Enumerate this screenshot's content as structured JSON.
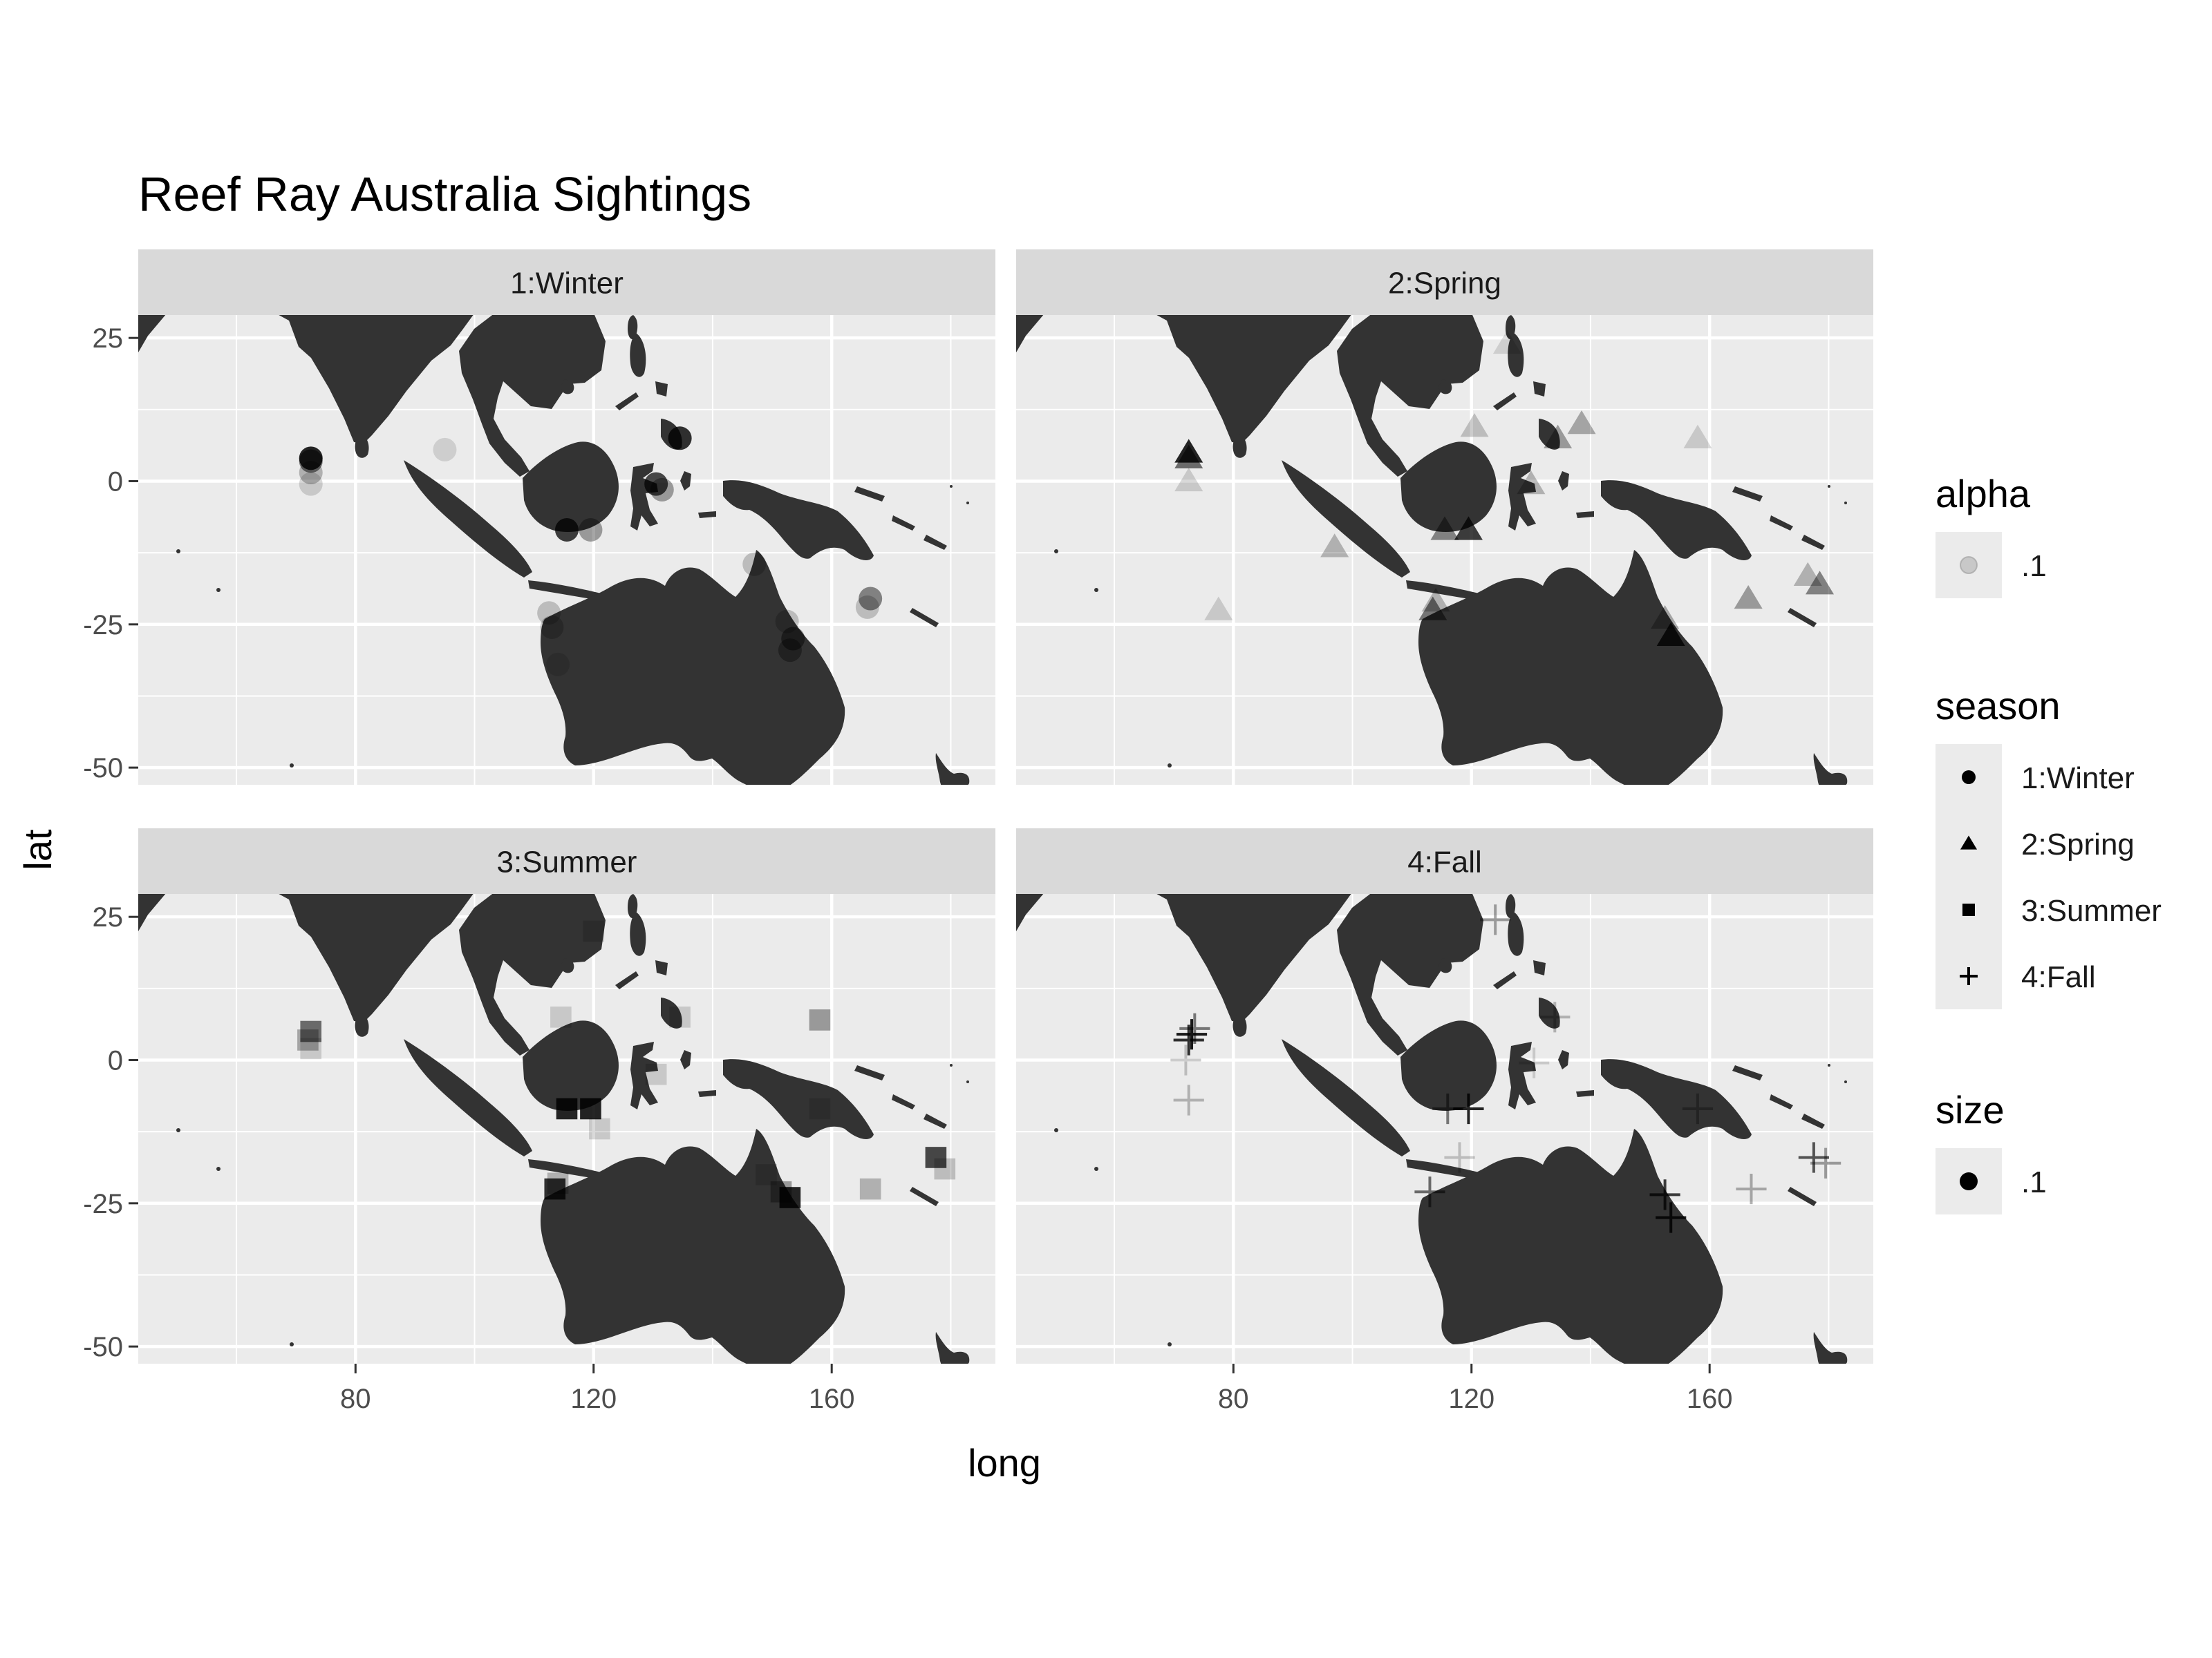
{
  "chart_data": {
    "type": "scatter",
    "title": "Reef Ray Australia Sightings",
    "xlabel": "long",
    "ylabel": "lat",
    "xlim": [
      43.5,
      187.5
    ],
    "ylim": [
      -53,
      29
    ],
    "x_ticks": [
      80,
      120,
      160
    ],
    "y_ticks": [
      25,
      0,
      -25,
      -50
    ],
    "grid": true,
    "panels": [
      {
        "label": "1:Winter",
        "shape": "circle",
        "points": [
          {
            "long": 72.5,
            "lat": 4,
            "opacity": 0.85
          },
          {
            "long": 72.5,
            "lat": 3.5,
            "opacity": 0.5
          },
          {
            "long": 72.5,
            "lat": 1.5,
            "opacity": 0.25
          },
          {
            "long": 72.5,
            "lat": -0.5,
            "opacity": 0.15
          },
          {
            "long": 134.5,
            "lat": 7.5,
            "opacity": 0.8
          },
          {
            "long": 130.5,
            "lat": -0.5,
            "opacity": 0.7
          },
          {
            "long": 131.5,
            "lat": -1.5,
            "opacity": 0.35
          },
          {
            "long": 115.5,
            "lat": -8.5,
            "opacity": 0.75
          },
          {
            "long": 119.5,
            "lat": -8.5,
            "opacity": 0.35
          },
          {
            "long": 147,
            "lat": -14.5,
            "opacity": 0.2
          },
          {
            "long": 112.5,
            "lat": -23,
            "opacity": 0.2
          },
          {
            "long": 113,
            "lat": -25.5,
            "opacity": 0.2
          },
          {
            "long": 153.5,
            "lat": -27.5,
            "opacity": 0.45
          },
          {
            "long": 153,
            "lat": -29.5,
            "opacity": 0.35
          },
          {
            "long": 152.5,
            "lat": -24.5,
            "opacity": 0.2
          },
          {
            "long": 166.5,
            "lat": -20.5,
            "opacity": 0.45
          },
          {
            "long": 166,
            "lat": -22,
            "opacity": 0.2
          },
          {
            "long": 95,
            "lat": 5.5,
            "opacity": 0.12
          },
          {
            "long": 114,
            "lat": -32,
            "opacity": 0.12
          }
        ]
      },
      {
        "label": "2:Spring",
        "shape": "triangle",
        "points": [
          {
            "long": 72.5,
            "lat": 5,
            "opacity": 0.85
          },
          {
            "long": 72.5,
            "lat": 4,
            "opacity": 0.55
          },
          {
            "long": 72.5,
            "lat": 0,
            "opacity": 0.15
          },
          {
            "long": 97,
            "lat": -11.5,
            "opacity": 0.25
          },
          {
            "long": 77.5,
            "lat": -22.5,
            "opacity": 0.15
          },
          {
            "long": 120.5,
            "lat": 9.5,
            "opacity": 0.2
          },
          {
            "long": 134.5,
            "lat": 7.5,
            "opacity": 0.35
          },
          {
            "long": 138.5,
            "lat": 10,
            "opacity": 0.3
          },
          {
            "long": 158,
            "lat": 7.5,
            "opacity": 0.15
          },
          {
            "long": 130,
            "lat": -0.5,
            "opacity": 0.25
          },
          {
            "long": 115.5,
            "lat": -8.5,
            "opacity": 0.45
          },
          {
            "long": 119.5,
            "lat": -8.5,
            "opacity": 0.75
          },
          {
            "long": 113.5,
            "lat": -22.5,
            "opacity": 0.5
          },
          {
            "long": 114,
            "lat": -21,
            "opacity": 0.25
          },
          {
            "long": 153.5,
            "lat": -27,
            "opacity": 0.8
          },
          {
            "long": 152.5,
            "lat": -24,
            "opacity": 0.3
          },
          {
            "long": 166.5,
            "lat": -20.5,
            "opacity": 0.35
          },
          {
            "long": 176.5,
            "lat": -16.5,
            "opacity": 0.25
          },
          {
            "long": 178.5,
            "lat": -18,
            "opacity": 0.45
          },
          {
            "long": 126,
            "lat": 24,
            "opacity": 0.12
          }
        ]
      },
      {
        "label": "3:Summer",
        "shape": "square",
        "points": [
          {
            "long": 72.5,
            "lat": 5,
            "opacity": 0.55
          },
          {
            "long": 72,
            "lat": 3.5,
            "opacity": 0.3
          },
          {
            "long": 72.5,
            "lat": 2,
            "opacity": 0.15
          },
          {
            "long": 114.5,
            "lat": 7.5,
            "opacity": 0.15
          },
          {
            "long": 120,
            "lat": 22.5,
            "opacity": 0.15
          },
          {
            "long": 134.5,
            "lat": 7.5,
            "opacity": 0.15
          },
          {
            "long": 158,
            "lat": 7,
            "opacity": 0.35
          },
          {
            "long": 115.5,
            "lat": -8.5,
            "opacity": 0.85
          },
          {
            "long": 119.5,
            "lat": -8.5,
            "opacity": 0.85
          },
          {
            "long": 121,
            "lat": -12,
            "opacity": 0.15
          },
          {
            "long": 130.5,
            "lat": -2.5,
            "opacity": 0.15
          },
          {
            "long": 113.5,
            "lat": -22.5,
            "opacity": 0.8
          },
          {
            "long": 114,
            "lat": -21.5,
            "opacity": 0.25
          },
          {
            "long": 153,
            "lat": -24,
            "opacity": 0.85
          },
          {
            "long": 151.5,
            "lat": -23,
            "opacity": 0.35
          },
          {
            "long": 149,
            "lat": -20,
            "opacity": 0.15
          },
          {
            "long": 166.5,
            "lat": -22.5,
            "opacity": 0.25
          },
          {
            "long": 177.5,
            "lat": -17,
            "opacity": 0.7
          },
          {
            "long": 179,
            "lat": -19,
            "opacity": 0.2
          },
          {
            "long": 158,
            "lat": -8.5,
            "opacity": 0.12
          }
        ]
      },
      {
        "label": "4:Fall",
        "shape": "cross",
        "points": [
          {
            "long": 73,
            "lat": 4.5,
            "opacity": 0.9
          },
          {
            "long": 72.5,
            "lat": 3.5,
            "opacity": 0.8
          },
          {
            "long": 73.5,
            "lat": 5.5,
            "opacity": 0.5
          },
          {
            "long": 72,
            "lat": 0,
            "opacity": 0.2
          },
          {
            "long": 72.5,
            "lat": -7,
            "opacity": 0.25
          },
          {
            "long": 124,
            "lat": 24.5,
            "opacity": 0.35
          },
          {
            "long": 134,
            "lat": 7.5,
            "opacity": 0.25
          },
          {
            "long": 116,
            "lat": -8.5,
            "opacity": 0.5
          },
          {
            "long": 119.5,
            "lat": -8.5,
            "opacity": 0.85
          },
          {
            "long": 118,
            "lat": -17,
            "opacity": 0.2
          },
          {
            "long": 113,
            "lat": -23,
            "opacity": 0.55
          },
          {
            "long": 152.5,
            "lat": -23.5,
            "opacity": 0.75
          },
          {
            "long": 153.5,
            "lat": -27.5,
            "opacity": 0.85
          },
          {
            "long": 158,
            "lat": -8.5,
            "opacity": 0.3
          },
          {
            "long": 167,
            "lat": -22.5,
            "opacity": 0.3
          },
          {
            "long": 177.5,
            "lat": -17,
            "opacity": 0.65
          },
          {
            "long": 179.5,
            "lat": -18,
            "opacity": 0.35
          },
          {
            "long": 130.5,
            "lat": -0.5,
            "opacity": 0.15
          }
        ]
      }
    ],
    "legends": [
      {
        "title": "alpha",
        "entries": [
          {
            "label": ".1",
            "shape": "circle",
            "opacity": 0.15
          }
        ]
      },
      {
        "title": "season",
        "entries": [
          {
            "label": "1:Winter",
            "shape": "circle"
          },
          {
            "label": "2:Spring",
            "shape": "triangle"
          },
          {
            "label": "3:Summer",
            "shape": "square"
          },
          {
            "label": "4:Fall",
            "shape": "cross"
          }
        ]
      },
      {
        "title": "size",
        "entries": [
          {
            "label": ".1",
            "shape": "circle"
          }
        ]
      }
    ],
    "legend_position": "right",
    "colors": {
      "panel_bg": "#ebebeb",
      "strip_bg": "#d9d9d9",
      "grid": "#ffffff",
      "land": "#333333",
      "point": "#000000",
      "text": "#1a1a1a",
      "axis_text": "#4d4d4d"
    }
  }
}
